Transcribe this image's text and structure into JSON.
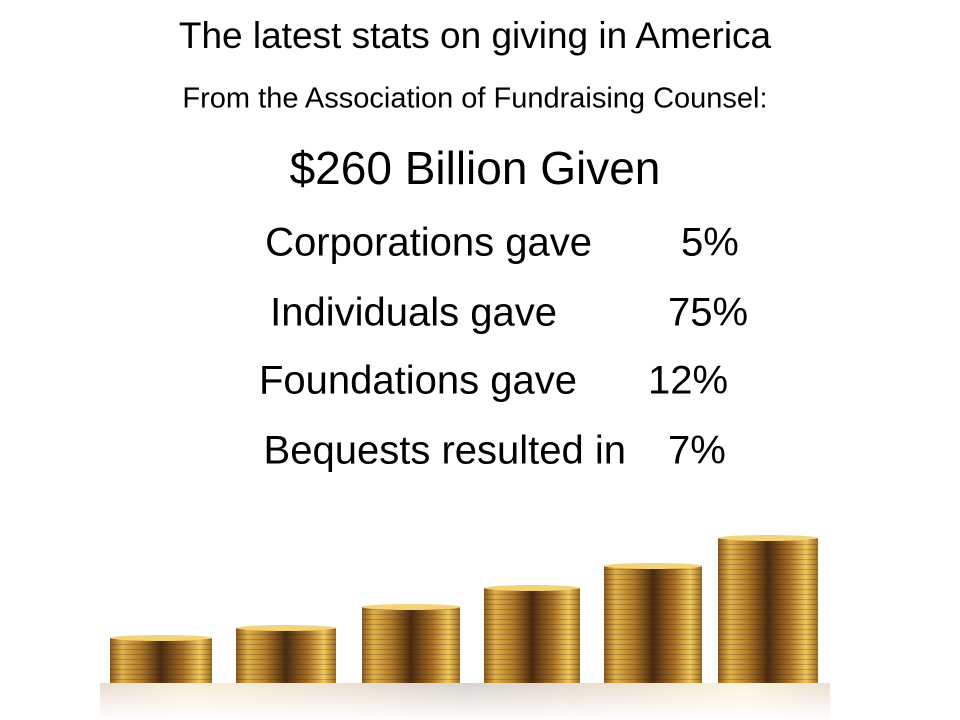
{
  "header": {
    "title": "The latest stats on giving in America",
    "subtitle": "From the Association of Fundraising Counsel:",
    "headline": "$260 Billion Given"
  },
  "rows": [
    {
      "label": "Corporations gave",
      "value": "5%"
    },
    {
      "label": "Individuals gave",
      "value": "75%"
    },
    {
      "label": "Foundations gave",
      "value": "12%"
    },
    {
      "label": "Bequests resulted in",
      "value": "7%"
    }
  ]
}
